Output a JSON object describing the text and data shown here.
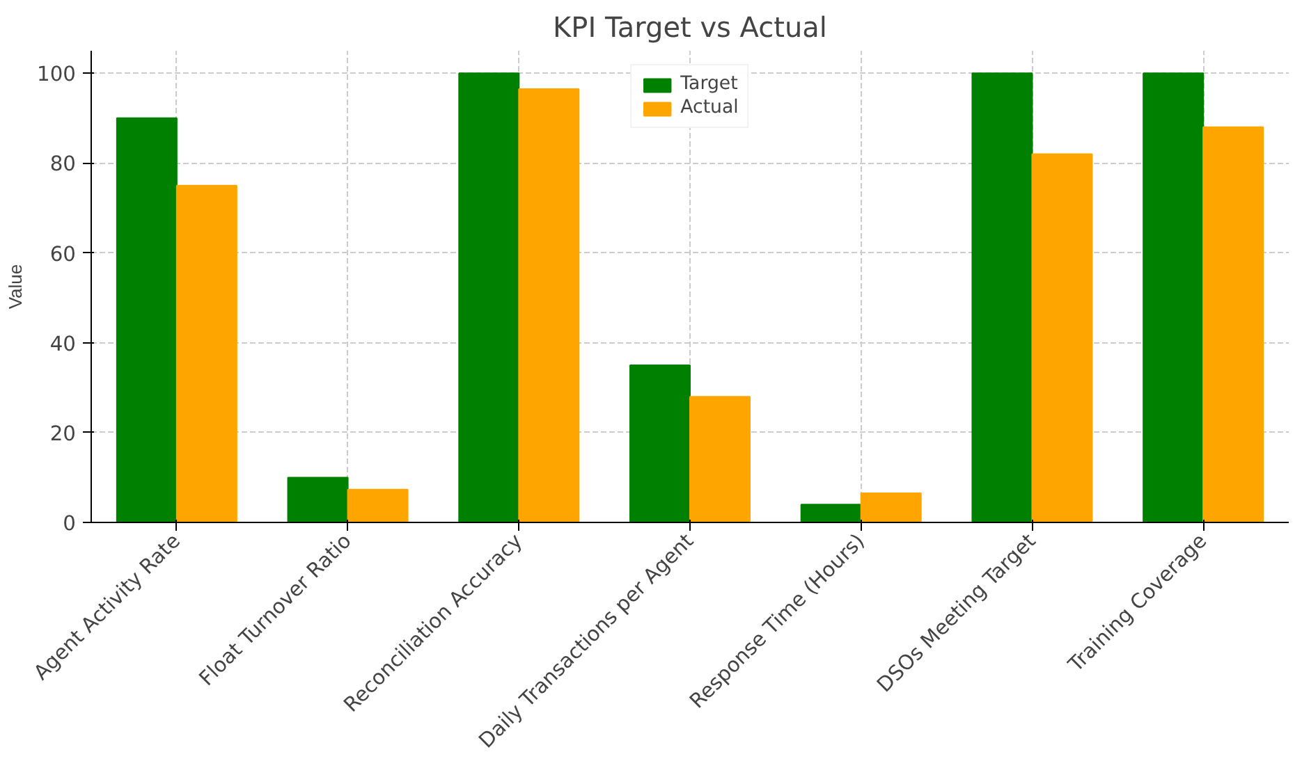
{
  "chart_data": {
    "type": "bar",
    "title": "KPI Target vs Actual",
    "ylabel": "Value",
    "categories": [
      "Agent Activity Rate",
      "Float Turnover Ratio",
      "Reconciliation Accuracy",
      "Daily Transactions per Agent",
      "Response Time (Hours)",
      "DSOs Meeting Target",
      "Training Coverage"
    ],
    "series": [
      {
        "name": "Target",
        "color": "#008000",
        "values": [
          90,
          10,
          100,
          35,
          4,
          100,
          100
        ]
      },
      {
        "name": "Actual",
        "color": "#ffa500",
        "values": [
          75,
          7.3,
          96.5,
          28,
          6.5,
          82,
          88
        ]
      }
    ],
    "ylim": [
      0,
      105
    ],
    "yticks": [
      0,
      20,
      40,
      60,
      80,
      100
    ],
    "grid": true,
    "legend": "top"
  }
}
